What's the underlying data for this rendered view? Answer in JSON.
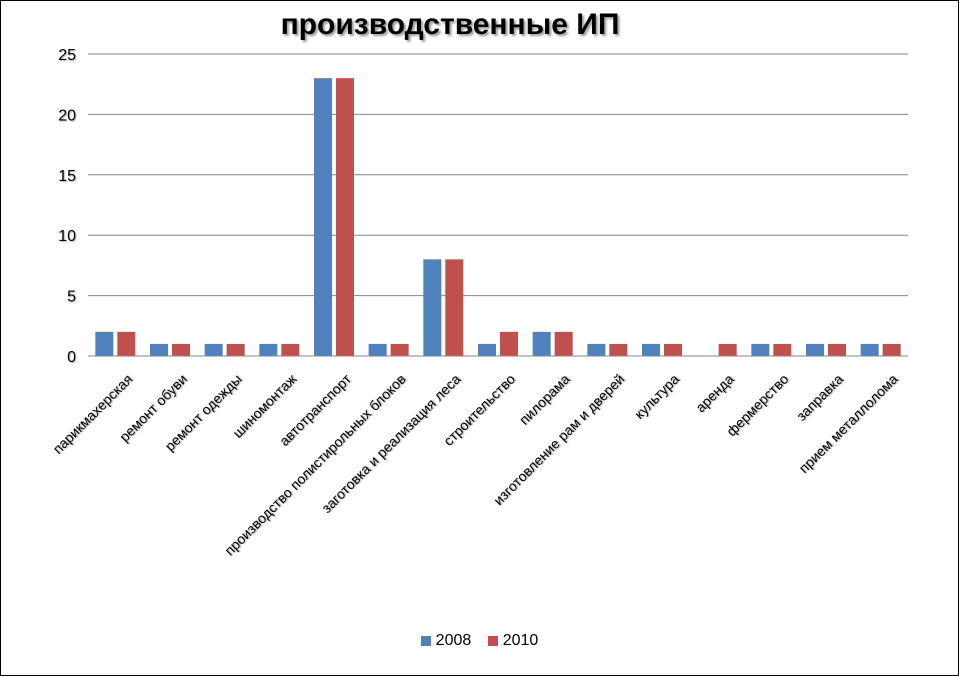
{
  "chart_data": {
    "type": "bar",
    "title": "производственные ИП",
    "categories": [
      "парикмахерская",
      "ремонт обуви",
      "ремонт одежды",
      "шиномонтаж",
      "автотранспорт",
      "производство полистирольных блоков",
      "заготовка и реализация леса",
      "строительство",
      "пилорама",
      "изготовление рам и дверей",
      "культура",
      "аренда",
      "фермерство",
      "заправка",
      "прием металлолома"
    ],
    "series": [
      {
        "name": "2008",
        "color": "#4F81BD",
        "values": [
          2,
          1,
          1,
          1,
          23,
          1,
          8,
          1,
          2,
          1,
          1,
          0,
          1,
          1,
          1
        ]
      },
      {
        "name": "2010",
        "color": "#C0504D",
        "values": [
          2,
          1,
          1,
          1,
          23,
          1,
          8,
          2,
          2,
          1,
          1,
          1,
          1,
          1,
          1
        ]
      }
    ],
    "ylim": [
      0,
      25
    ],
    "yticks": [
      "0",
      "5",
      "10",
      "15",
      "20",
      "25"
    ],
    "grid": true,
    "legend_position": "bottom"
  }
}
